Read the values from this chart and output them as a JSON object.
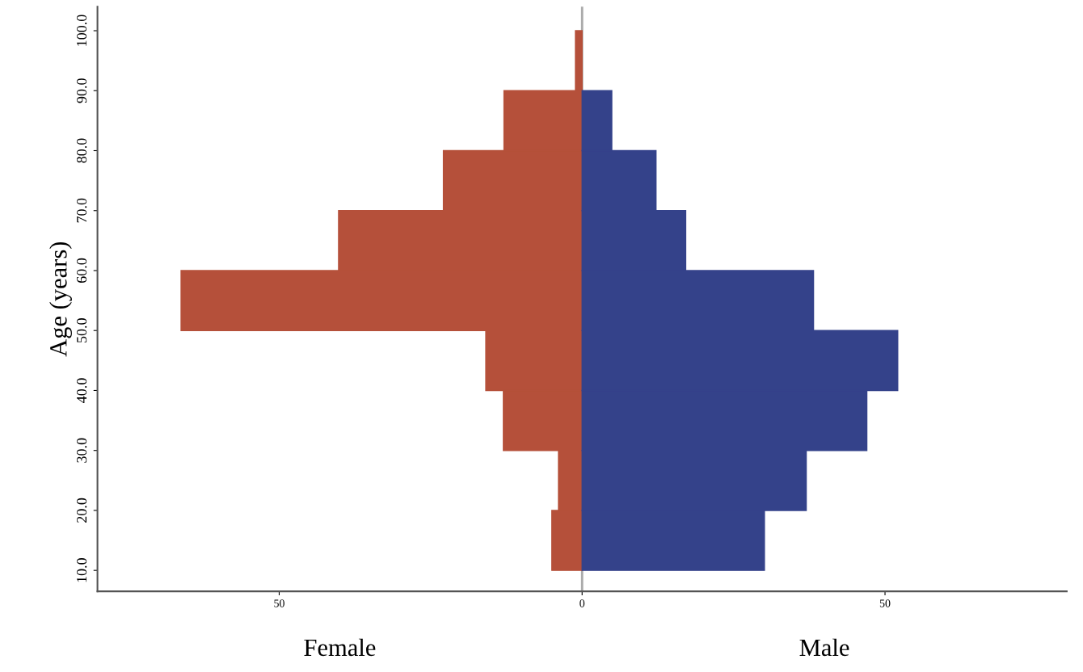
{
  "chart_data": {
    "type": "bar",
    "orientation": "horizontal",
    "x": [
      15,
      25,
      35,
      45,
      55,
      65,
      75,
      85,
      95
    ],
    "series": [
      {
        "color": "#b5503a",
        "values": [
          -5.0,
          -3.9,
          -13.0,
          -15.9,
          -66.2,
          -40.2,
          -22.9,
          -12.9,
          -1.1
        ]
      },
      {
        "color": "#34428a",
        "values": [
          30.1,
          37.0,
          47.0,
          52.1,
          38.2,
          17.1,
          12.2,
          4.9,
          null
        ]
      }
    ],
    "ylabel": "Age (years)",
    "stacked": true,
    "annotations": [
      "Female",
      "Male"
    ],
    "xlim": [
      -80,
      80
    ],
    "xticks": [
      {
        "value": -50,
        "label": "50"
      },
      0,
      50
    ],
    "ylim": [
      6.5,
      104
    ],
    "yticks": [
      {
        "value": 10,
        "label": "10.0"
      },
      {
        "value": 20,
        "label": "20.0"
      },
      {
        "value": 30,
        "label": "30.0"
      },
      {
        "value": 40,
        "label": "40.0"
      },
      {
        "value": 50,
        "label": "50.0"
      },
      {
        "value": 60,
        "label": "60.0"
      },
      {
        "value": 70,
        "label": "70.0"
      },
      {
        "value": 80,
        "label": "80.0"
      },
      {
        "value": 90,
        "label": "90.0"
      },
      {
        "value": 100,
        "label": "100.0"
      }
    ],
    "ref_lines": [
      {
        "axis": "x",
        "value": 0,
        "color": "#aaaaaa"
      }
    ],
    "grid": false
  }
}
